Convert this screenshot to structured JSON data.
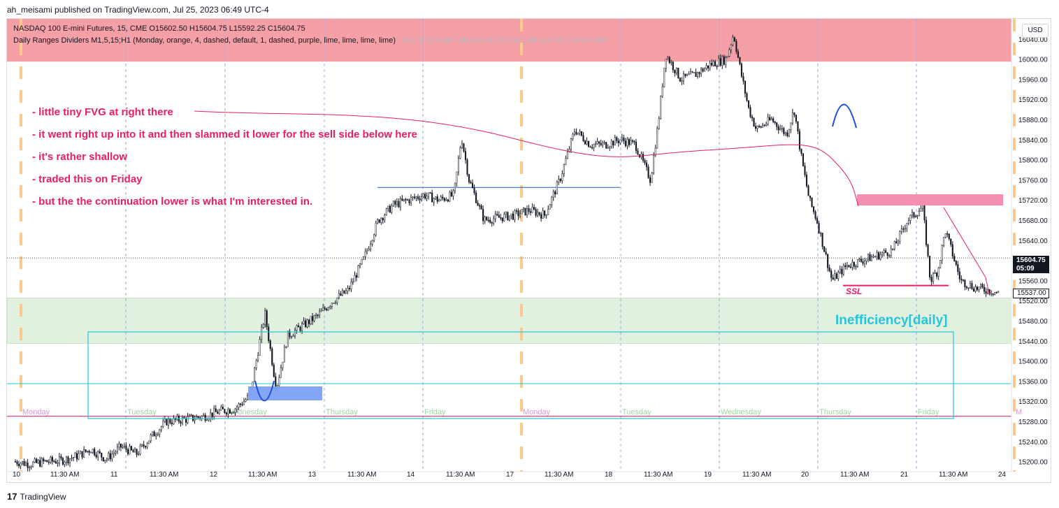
{
  "caption": "ah_meisami published on TradingView.com, Jul 25, 2023 06:49 UTC-4",
  "legend": {
    "symbol_line": "NASDAQ 100 E-mini Futures, 15, CME  O15602.50  H15604.75  L15592.25  C15604.75",
    "indicator_line": "Daily Ranges Dividers M1,5,15;H1 (Monday, orange, 4, dashed, default, 1, dashed, purple, lime, lime, lime, lime)",
    "indicator_values": "0.00  0.00  0.00  0.00  0.00  0.00  0.00  0.00  0.00  0.00  0.00  0.00"
  },
  "currency_button": "USD",
  "notes": [
    "- little tiny FVG at right there",
    "- it went right up into it and then slammed it lower for the sell side below here",
    "- it's rather shallow",
    "- traded this on Friday",
    "- but the the continuation lower is what I'm interested in."
  ],
  "inefficiency_label": "Inefficiency[daily]",
  "ssl_label": "SSL",
  "last_price": "15604.75",
  "countdown": "05:09",
  "second_price": "15537.00",
  "footer_logo": "TradingView",
  "colors": {
    "upper_zone": "#f5a0a7",
    "lower_zone": "#e2f0df",
    "annotation_pink": "#e91e63",
    "fvg_pink": "#f48fb1",
    "fvg_blue": "#7da1f5",
    "cyan": "#26c6da",
    "monday_divider": "#fbc98e",
    "day_divider": "#90aee0",
    "candles": "#131722",
    "weekday_label": "#9ad6a2",
    "monday_label": "#d49ad8"
  },
  "chart_data": {
    "type": "candlestick",
    "instrument": "NASDAQ 100 E-mini Futures",
    "timeframe": "15",
    "ylim": [
      15180,
      16080
    ],
    "y_ticks": [
      15200,
      15240,
      15280,
      15320,
      15360,
      15400,
      15440,
      15480,
      15520,
      15560,
      15600,
      15640,
      15680,
      15720,
      15760,
      15800,
      15840,
      15880,
      15920,
      15960,
      16000,
      16040
    ],
    "x_tick_labels": [
      "10",
      "11:30 AM",
      "11",
      "11:30 AM",
      "12",
      "11:30 AM",
      "13",
      "11:30 AM",
      "14",
      "11:30 AM",
      "17",
      "11:30 AM",
      "18",
      "11:30 AM",
      "19",
      "11:30 AM",
      "20",
      "11:30 AM",
      "21",
      "11:30 AM",
      "24"
    ],
    "weekday_labels": [
      "Monday",
      "Tuesday",
      "Wednesday",
      "Thursday",
      "Friday",
      "Monday",
      "Tuesday",
      "Wednesday",
      "Thursday",
      "Friday",
      "M"
    ],
    "price_path": [
      [
        0.0,
        15200
      ],
      [
        0.02,
        15195
      ],
      [
        0.04,
        15200
      ],
      [
        0.06,
        15202
      ],
      [
        0.08,
        15210
      ],
      [
        0.1,
        15225
      ],
      [
        0.12,
        15205
      ],
      [
        0.14,
        15230
      ],
      [
        0.16,
        15215
      ],
      [
        0.18,
        15250
      ],
      [
        0.2,
        15280
      ],
      [
        0.23,
        15285
      ],
      [
        0.25,
        15290
      ],
      [
        0.27,
        15300
      ],
      [
        0.29,
        15305
      ],
      [
        0.31,
        15330
      ],
      [
        0.33,
        15495
      ],
      [
        0.345,
        15345
      ],
      [
        0.36,
        15450
      ],
      [
        0.38,
        15470
      ],
      [
        0.4,
        15490
      ],
      [
        0.42,
        15520
      ],
      [
        0.44,
        15540
      ],
      [
        0.46,
        15600
      ],
      [
        0.48,
        15680
      ],
      [
        0.5,
        15710
      ],
      [
        0.52,
        15720
      ],
      [
        0.54,
        15730
      ],
      [
        0.56,
        15720
      ],
      [
        0.58,
        15730
      ],
      [
        0.59,
        15845
      ],
      [
        0.6,
        15760
      ],
      [
        0.62,
        15680
      ],
      [
        0.64,
        15685
      ],
      [
        0.66,
        15690
      ],
      [
        0.68,
        15700
      ],
      [
        0.7,
        15690
      ],
      [
        0.72,
        15760
      ],
      [
        0.74,
        15860
      ],
      [
        0.76,
        15830
      ],
      [
        0.78,
        15830
      ],
      [
        0.8,
        15840
      ],
      [
        0.82,
        15830
      ],
      [
        0.84,
        15760
      ],
      [
        0.85,
        15870
      ],
      [
        0.86,
        16010
      ],
      [
        0.88,
        15960
      ],
      [
        0.9,
        15970
      ],
      [
        0.92,
        15990
      ],
      [
        0.94,
        16000
      ],
      [
        0.95,
        16050
      ],
      [
        0.96,
        15970
      ],
      [
        0.97,
        15900
      ],
      [
        0.98,
        15860
      ],
      [
        1.0,
        15880
      ],
      [
        1.02,
        15850
      ],
      [
        1.03,
        15900
      ],
      [
        1.04,
        15800
      ],
      [
        1.05,
        15720
      ],
      [
        1.06,
        15680
      ],
      [
        1.08,
        15560
      ],
      [
        1.1,
        15590
      ],
      [
        1.12,
        15600
      ],
      [
        1.14,
        15610
      ],
      [
        1.16,
        15620
      ],
      [
        1.18,
        15680
      ],
      [
        1.2,
        15705
      ],
      [
        1.21,
        15560
      ],
      [
        1.22,
        15580
      ],
      [
        1.23,
        15660
      ],
      [
        1.25,
        15560
      ],
      [
        1.27,
        15545
      ],
      [
        1.29,
        15540
      ],
      [
        1.3,
        15535
      ]
    ],
    "levels": [
      {
        "name": "premium-zone",
        "from": 15995,
        "to": 16080
      },
      {
        "name": "inefficiency-zone",
        "from": 15435,
        "to": 15525
      },
      {
        "name": "high-line",
        "price": 15745
      },
      {
        "name": "ssl-line",
        "price": 15550
      },
      {
        "name": "support-line",
        "price": 15355
      },
      {
        "name": "bottom-line",
        "price": 15290
      },
      {
        "name": "last-price-line",
        "price": 15604.75
      }
    ]
  }
}
